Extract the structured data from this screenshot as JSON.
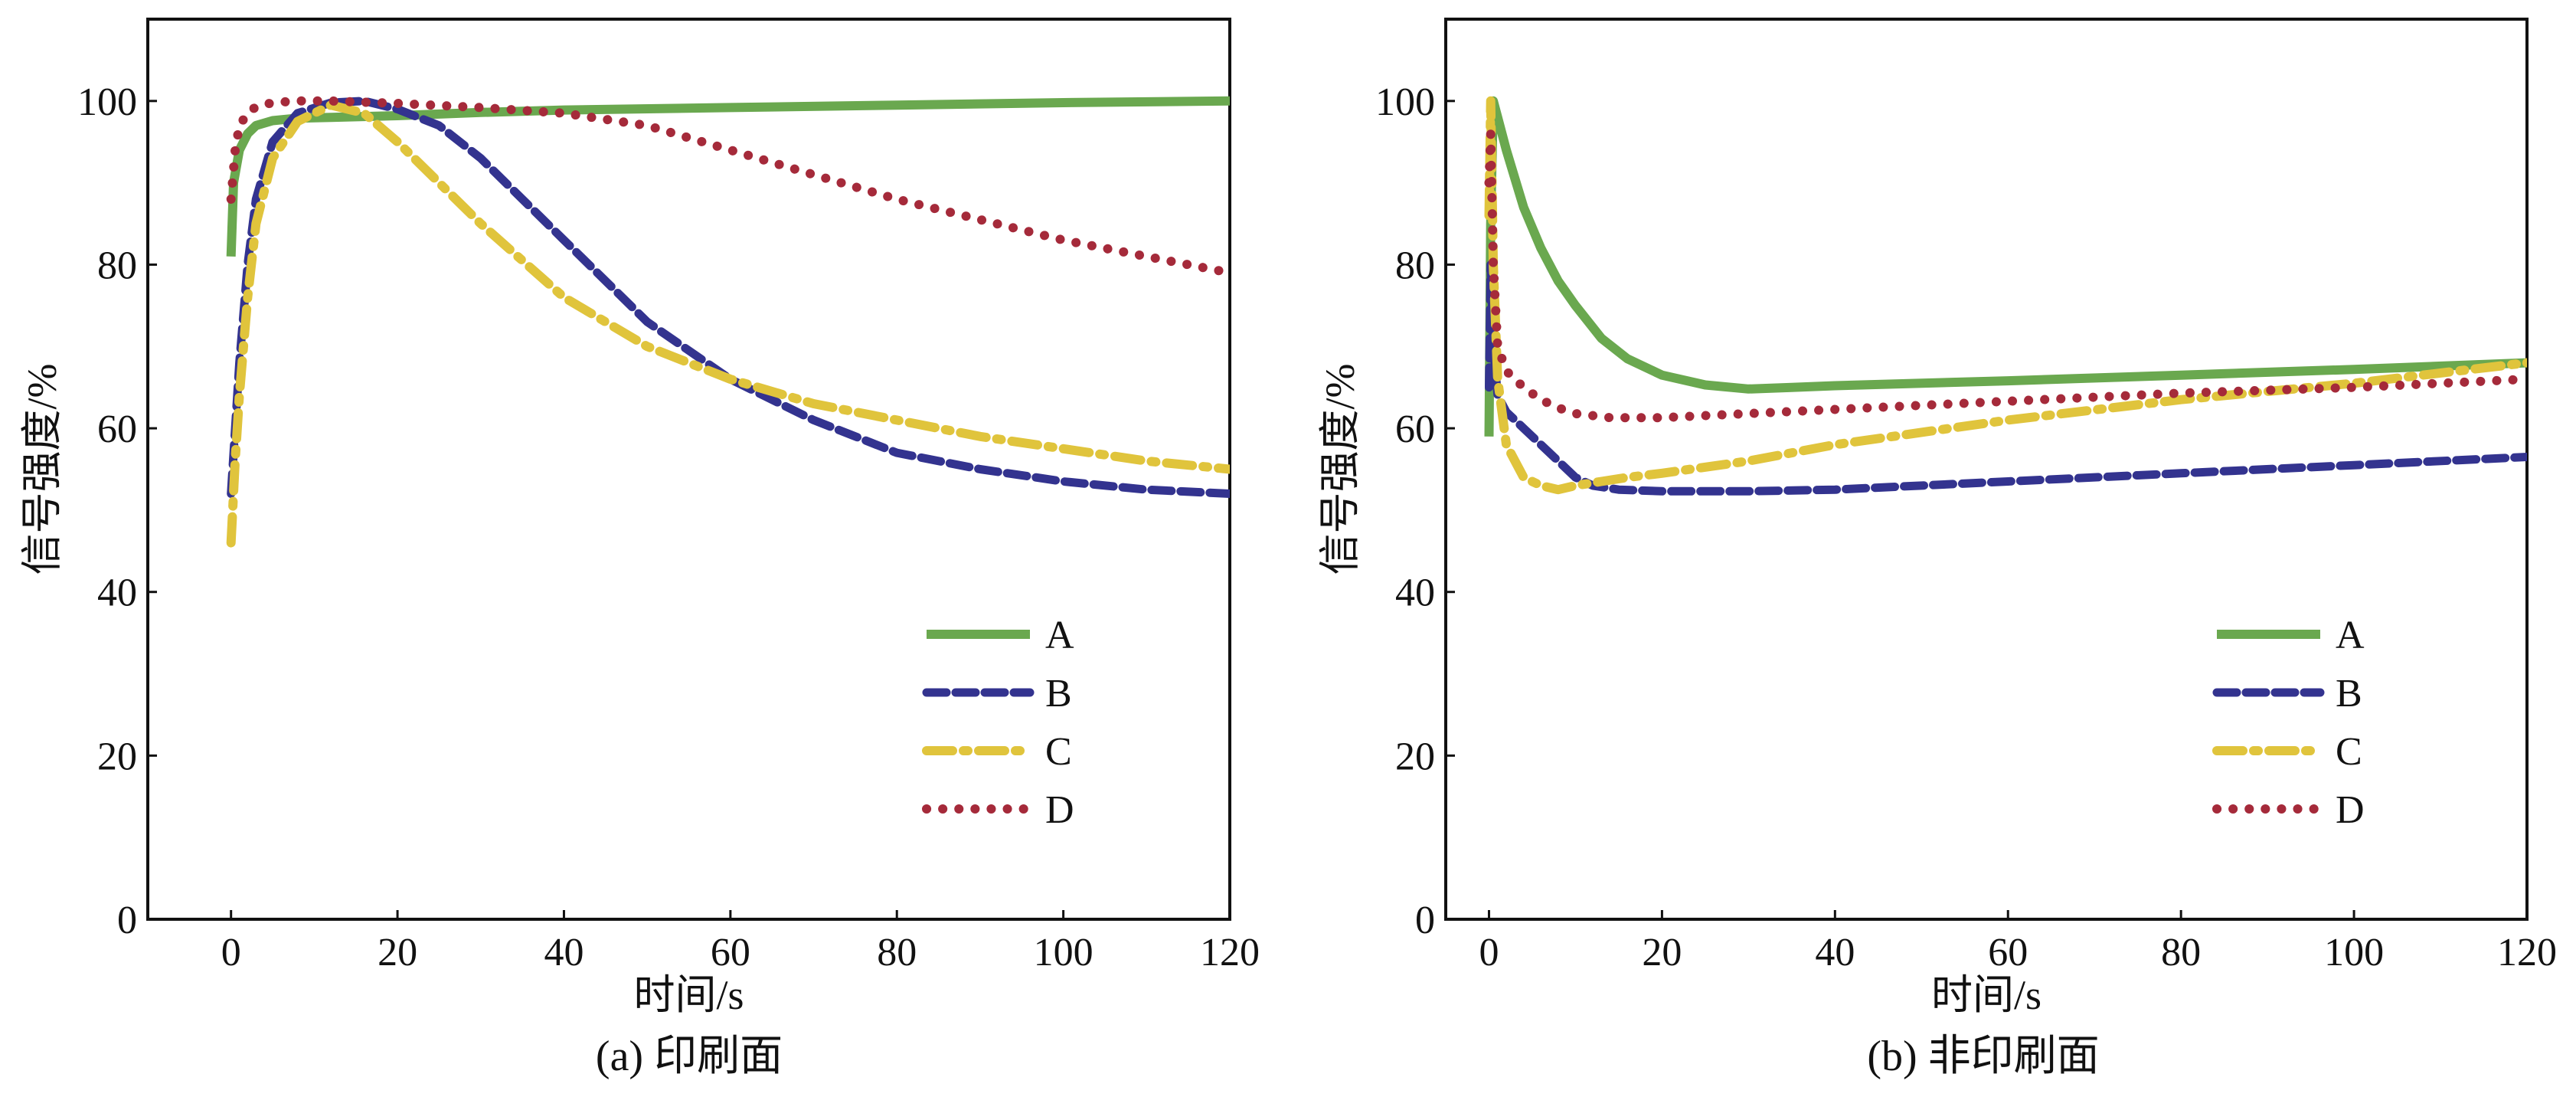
{
  "chart_data": [
    {
      "type": "line",
      "caption": "(a) 印刷面",
      "xlabel": "时间/s",
      "ylabel": "信号强度/%",
      "xlim": [
        -10,
        120
      ],
      "ylim": [
        0,
        110
      ],
      "xticks": [
        "0",
        "20",
        "40",
        "60",
        "80",
        "100",
        "120"
      ],
      "yticks": [
        "0",
        "20",
        "40",
        "60",
        "80",
        "100"
      ],
      "legend_position": "lower-right",
      "series": [
        {
          "name": "A",
          "color": "#6aa84f",
          "style": "solid",
          "x": [
            0,
            0.3,
            1,
            2,
            3,
            5,
            8,
            12,
            20,
            30,
            40,
            60,
            80,
            100,
            120
          ],
          "y": [
            81,
            90,
            94,
            96,
            97,
            97.6,
            97.9,
            98,
            98.2,
            98.6,
            98.9,
            99.2,
            99.5,
            99.8,
            100
          ]
        },
        {
          "name": "B",
          "color": "#33338f",
          "style": "dashed",
          "x": [
            0,
            0.5,
            1,
            2,
            3,
            5,
            8,
            12,
            16,
            20,
            25,
            30,
            40,
            50,
            60,
            70,
            80,
            90,
            100,
            110,
            120
          ],
          "y": [
            52,
            60,
            68,
            80,
            88,
            95,
            98.5,
            99.8,
            100,
            99,
            97,
            93,
            83,
            73,
            66,
            61,
            57,
            55,
            53.5,
            52.5,
            52
          ]
        },
        {
          "name": "C",
          "color": "#e0c43c",
          "style": "dashdot",
          "x": [
            0,
            0.5,
            1,
            2,
            3,
            5,
            8,
            12,
            16,
            20,
            25,
            30,
            40,
            50,
            60,
            70,
            80,
            90,
            100,
            110,
            120
          ],
          "y": [
            46,
            56,
            64,
            76,
            85,
            93,
            97.5,
            99.5,
            98.5,
            95,
            90,
            85,
            76,
            70,
            66,
            63,
            61,
            59,
            57.5,
            56,
            55
          ]
        },
        {
          "name": "D",
          "color": "#a52a3a",
          "style": "dotted",
          "x": [
            0,
            0.5,
            1,
            2,
            3,
            5,
            8,
            12,
            20,
            30,
            40,
            50,
            60,
            70,
            80,
            90,
            100,
            110,
            120
          ],
          "y": [
            88,
            94,
            97,
            98.5,
            99.3,
            99.8,
            100,
            100,
            99.7,
            99.2,
            98.5,
            97,
            94,
            91,
            88,
            85.5,
            83,
            81,
            79
          ]
        }
      ]
    },
    {
      "type": "line",
      "caption": "(b) 非印刷面",
      "xlabel": "时间/s",
      "ylabel": "信号强度/%",
      "xlim": [
        -5,
        120
      ],
      "ylim": [
        0,
        110
      ],
      "xticks": [
        "0",
        "20",
        "40",
        "60",
        "80",
        "100",
        "120"
      ],
      "yticks": [
        "0",
        "20",
        "40",
        "60",
        "80",
        "100"
      ],
      "legend_position": "lower-right",
      "series": [
        {
          "name": "A",
          "color": "#6aa84f",
          "style": "solid",
          "x": [
            0,
            0.2,
            0.5,
            1,
            2,
            4,
            6,
            8,
            10,
            13,
            16,
            20,
            25,
            30,
            35,
            40,
            60,
            80,
            100,
            120
          ],
          "y": [
            59,
            85,
            100,
            98,
            94,
            87,
            82,
            78,
            75,
            71,
            68.5,
            66.5,
            65.3,
            64.8,
            65,
            65.2,
            65.8,
            66.5,
            67.2,
            68
          ]
        },
        {
          "name": "B",
          "color": "#33338f",
          "style": "dashed",
          "x": [
            0,
            0.2,
            0.5,
            1,
            2,
            4,
            6,
            8,
            10,
            12,
            15,
            20,
            30,
            40,
            60,
            80,
            100,
            120
          ],
          "y": [
            65,
            80,
            70,
            64,
            62,
            60,
            58,
            56,
            54,
            53,
            52.5,
            52.3,
            52.3,
            52.5,
            53.5,
            54.5,
            55.5,
            56.5
          ]
        },
        {
          "name": "C",
          "color": "#e0c43c",
          "style": "dashdot",
          "x": [
            0,
            0.2,
            0.5,
            1,
            2,
            4,
            6,
            8,
            10,
            13,
            16,
            20,
            30,
            40,
            60,
            80,
            100,
            120
          ],
          "y": [
            86,
            100,
            80,
            66,
            58,
            54,
            53,
            52.5,
            53,
            53.5,
            54,
            54.5,
            56,
            58,
            61,
            63.5,
            65.5,
            68
          ]
        },
        {
          "name": "D",
          "color": "#a52a3a",
          "style": "dotted",
          "x": [
            0,
            0.2,
            0.5,
            1,
            2,
            4,
            6,
            8,
            10,
            14,
            20,
            30,
            40,
            60,
            80,
            100,
            120
          ],
          "y": [
            90,
            96,
            80,
            70,
            67,
            65,
            63.5,
            62.5,
            61.8,
            61.3,
            61.3,
            61.8,
            62.3,
            63.3,
            64.3,
            65,
            66
          ]
        }
      ]
    }
  ]
}
